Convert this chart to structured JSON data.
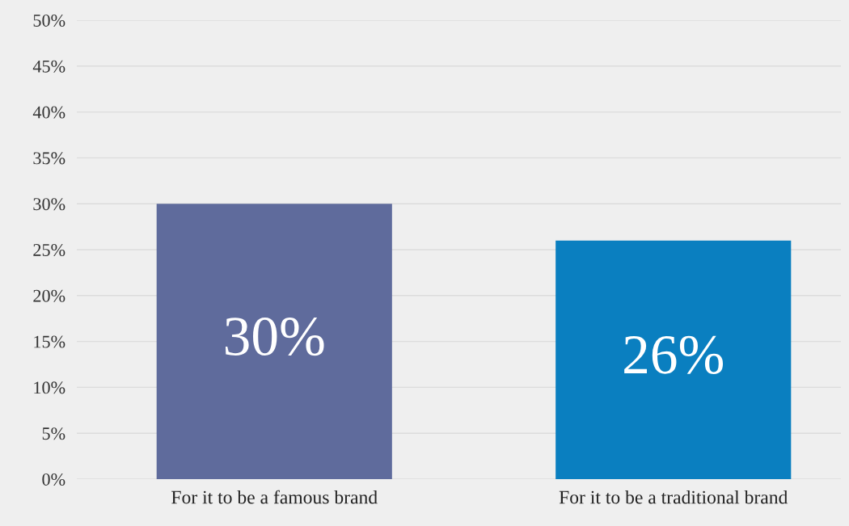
{
  "chart_data": {
    "type": "bar",
    "categories": [
      "For it to be a famous brand",
      "For it to be a traditional brand"
    ],
    "values": [
      30,
      26
    ],
    "colors": [
      "#5f6b9c",
      "#0a7fc0"
    ],
    "value_labels": [
      "30%",
      "26%"
    ],
    "ylim": [
      0,
      50
    ],
    "yticks": [
      {
        "value": 0,
        "label": "0%"
      },
      {
        "value": 5,
        "label": "5%"
      },
      {
        "value": 10,
        "label": "10%"
      },
      {
        "value": 15,
        "label": "15%"
      },
      {
        "value": 20,
        "label": "20%"
      },
      {
        "value": 25,
        "label": "25%"
      },
      {
        "value": 30,
        "label": "30%"
      },
      {
        "value": 35,
        "label": "35%"
      },
      {
        "value": 40,
        "label": "40%"
      },
      {
        "value": 45,
        "label": "45%"
      },
      {
        "value": 50,
        "label": "50%"
      }
    ],
    "grid": "y",
    "legend": false
  }
}
